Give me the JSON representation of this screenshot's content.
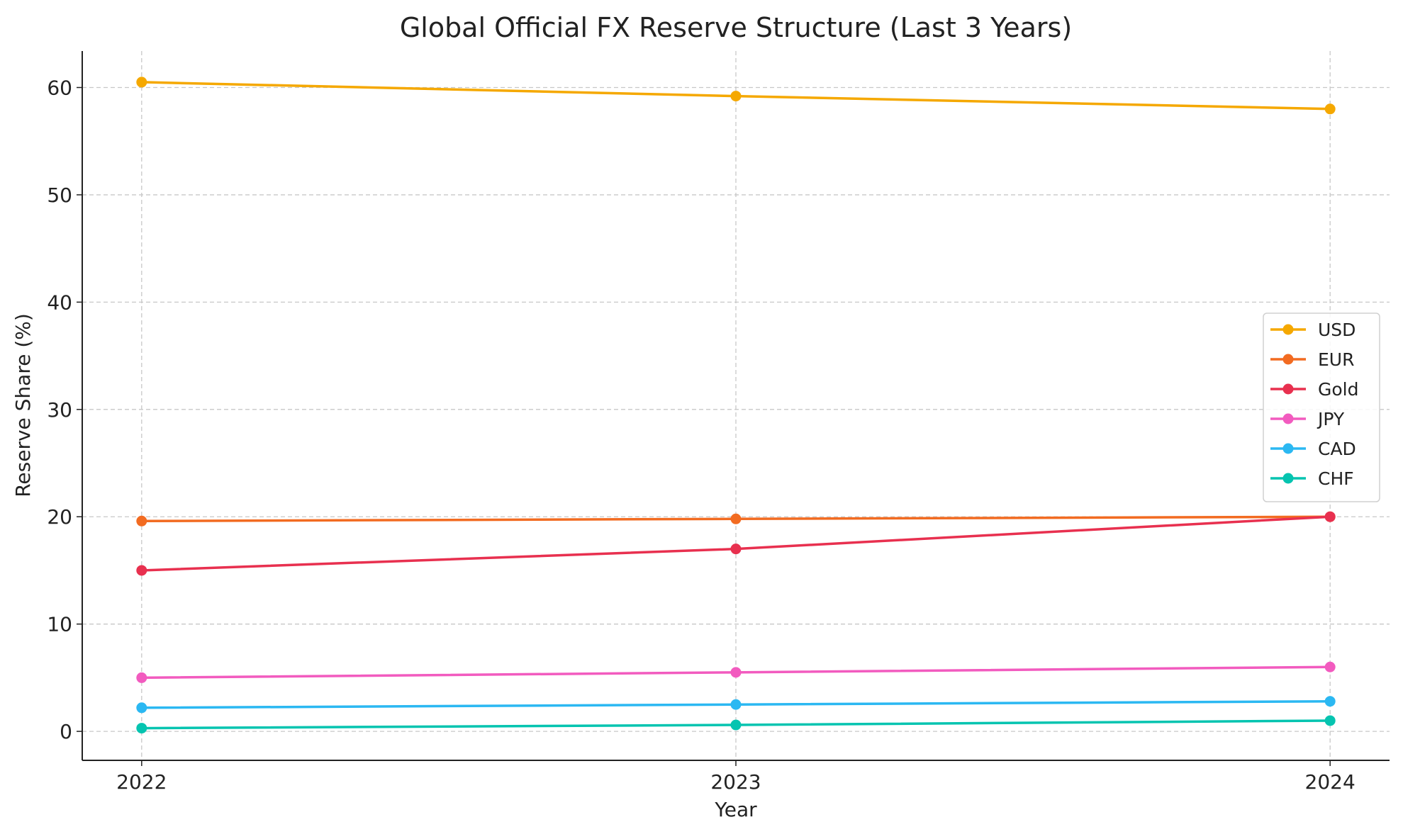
{
  "chart_data": {
    "type": "line",
    "title": "Global Official FX Reserve Structure (Last 3 Years)",
    "xlabel": "Year",
    "ylabel": "Reserve Share (%)",
    "x": [
      2022,
      2023,
      2024
    ],
    "x_tick_labels": [
      "2022",
      "2023",
      "2024"
    ],
    "y_ticks": [
      0,
      10,
      20,
      30,
      40,
      50,
      60
    ],
    "xlim": [
      2021.9,
      2024.1
    ],
    "ylim": [
      -2.7,
      63.4
    ],
    "grid": true,
    "legend_position": "center-right",
    "series": [
      {
        "name": "USD",
        "values": [
          60.5,
          59.2,
          58.0
        ],
        "color": "#f5a800"
      },
      {
        "name": "EUR",
        "values": [
          19.6,
          19.8,
          20.0
        ],
        "color": "#f26b21"
      },
      {
        "name": "Gold",
        "values": [
          15.0,
          17.0,
          20.0
        ],
        "color": "#e8304f"
      },
      {
        "name": "JPY",
        "values": [
          5.0,
          5.5,
          6.0
        ],
        "color": "#f25bbf"
      },
      {
        "name": "CAD",
        "values": [
          2.2,
          2.5,
          2.8
        ],
        "color": "#2bb8f2"
      },
      {
        "name": "CHF",
        "values": [
          0.3,
          0.6,
          1.0
        ],
        "color": "#05c4b0"
      }
    ]
  }
}
